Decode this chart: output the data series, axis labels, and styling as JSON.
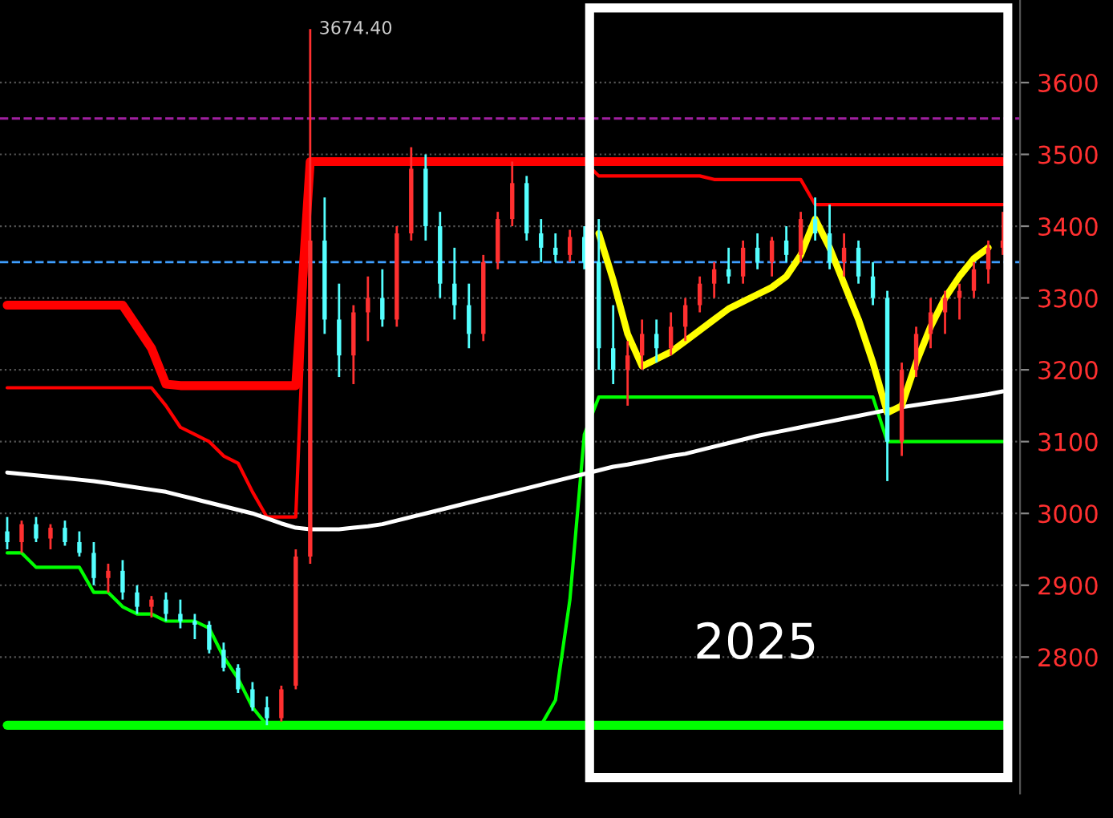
{
  "chart_data": {
    "type": "candlestick",
    "categories": [
      null,
      null,
      null,
      null,
      null,
      null,
      null,
      null,
      null,
      null,
      null,
      null,
      null,
      null,
      null,
      null,
      null,
      null,
      null,
      null,
      null,
      null,
      null,
      null,
      null,
      null,
      null,
      null,
      null,
      null,
      null,
      null,
      null,
      null,
      null,
      null,
      null,
      null,
      null,
      null,
      null,
      null,
      null,
      null,
      null,
      null,
      null,
      null,
      null,
      null,
      null,
      null,
      null,
      null,
      null,
      null,
      null,
      null,
      null,
      null,
      null,
      null,
      null,
      null,
      null,
      null,
      null,
      null,
      null,
      null
    ],
    "ohlc": [
      [
        2975,
        2995,
        2950,
        2960
      ],
      [
        2960,
        2990,
        2945,
        2985
      ],
      [
        2985,
        2995,
        2960,
        2965
      ],
      [
        2965,
        2985,
        2950,
        2980
      ],
      [
        2980,
        2990,
        2955,
        2960
      ],
      [
        2960,
        2975,
        2940,
        2945
      ],
      [
        2945,
        2960,
        2900,
        2910
      ],
      [
        2910,
        2930,
        2890,
        2920
      ],
      [
        2920,
        2935,
        2880,
        2890
      ],
      [
        2890,
        2900,
        2860,
        2870
      ],
      [
        2870,
        2885,
        2855,
        2880
      ],
      [
        2880,
        2890,
        2850,
        2860
      ],
      [
        2860,
        2880,
        2840,
        2850
      ],
      [
        2850,
        2860,
        2825,
        2845
      ],
      [
        2845,
        2850,
        2805,
        2810
      ],
      [
        2810,
        2820,
        2780,
        2785
      ],
      [
        2785,
        2790,
        2750,
        2755
      ],
      [
        2755,
        2765,
        2725,
        2730
      ],
      [
        2730,
        2745,
        2705,
        2715
      ],
      [
        2715,
        2760,
        2710,
        2755
      ],
      [
        2760,
        2950,
        2755,
        2940
      ],
      [
        2940,
        3674.4,
        2930,
        3380
      ],
      [
        3380,
        3440,
        3250,
        3270
      ],
      [
        3270,
        3320,
        3190,
        3220
      ],
      [
        3220,
        3290,
        3180,
        3280
      ],
      [
        3280,
        3330,
        3240,
        3300
      ],
      [
        3300,
        3340,
        3260,
        3270
      ],
      [
        3270,
        3400,
        3260,
        3390
      ],
      [
        3390,
        3510,
        3380,
        3480
      ],
      [
        3480,
        3500,
        3380,
        3400
      ],
      [
        3400,
        3420,
        3300,
        3320
      ],
      [
        3320,
        3370,
        3270,
        3290
      ],
      [
        3290,
        3320,
        3230,
        3250
      ],
      [
        3250,
        3360,
        3240,
        3350
      ],
      [
        3350,
        3420,
        3340,
        3410
      ],
      [
        3410,
        3490,
        3400,
        3460
      ],
      [
        3460,
        3470,
        3380,
        3390
      ],
      [
        3390,
        3410,
        3350,
        3370
      ],
      [
        3370,
        3390,
        3350,
        3360
      ],
      [
        3360,
        3395,
        3350,
        3385
      ],
      [
        3385,
        3400,
        3340,
        3350
      ],
      [
        3350,
        3410,
        3200,
        3230
      ],
      [
        3230,
        3290,
        3180,
        3200
      ],
      [
        3200,
        3240,
        3150,
        3220
      ],
      [
        3220,
        3270,
        3200,
        3250
      ],
      [
        3250,
        3270,
        3210,
        3230
      ],
      [
        3230,
        3280,
        3220,
        3260
      ],
      [
        3260,
        3300,
        3240,
        3290
      ],
      [
        3290,
        3330,
        3280,
        3320
      ],
      [
        3320,
        3350,
        3300,
        3340
      ],
      [
        3340,
        3370,
        3320,
        3330
      ],
      [
        3330,
        3380,
        3320,
        3370
      ],
      [
        3370,
        3390,
        3340,
        3350
      ],
      [
        3350,
        3385,
        3330,
        3380
      ],
      [
        3380,
        3400,
        3350,
        3360
      ],
      [
        3360,
        3420,
        3350,
        3410
      ],
      [
        3410,
        3440,
        3380,
        3390
      ],
      [
        3390,
        3430,
        3340,
        3350
      ],
      [
        3350,
        3390,
        3330,
        3370
      ],
      [
        3370,
        3380,
        3320,
        3330
      ],
      [
        3330,
        3350,
        3290,
        3300
      ],
      [
        3300,
        3310,
        3045,
        3100
      ],
      [
        3100,
        3210,
        3080,
        3200
      ],
      [
        3200,
        3260,
        3190,
        3250
      ],
      [
        3250,
        3300,
        3230,
        3280
      ],
      [
        3280,
        3310,
        3250,
        3300
      ],
      [
        3300,
        3320,
        3270,
        3310
      ],
      [
        3310,
        3350,
        3300,
        3340
      ],
      [
        3340,
        3380,
        3320,
        3370
      ],
      [
        3370,
        3420,
        3360,
        3380
      ]
    ],
    "series": [
      {
        "type": "line",
        "color": "#ff0000",
        "values": [
          3290,
          3290,
          3290,
          3290,
          3290,
          3290,
          3290,
          3290,
          3290,
          3260,
          3230,
          3180,
          3178,
          3178,
          3178,
          3178,
          3178,
          3178,
          3178,
          3178,
          3178,
          3490,
          3490,
          3490,
          3490,
          3490,
          3490,
          3490,
          3490,
          3490,
          3490,
          3490,
          3490,
          3490,
          3490,
          3490,
          3490,
          3490,
          3490,
          3490,
          3490,
          3490,
          3490,
          3490,
          3490,
          3490,
          3490,
          3490,
          3490,
          3490,
          3490,
          3490,
          3490,
          3490,
          3490,
          3490,
          3490,
          3490,
          3490,
          3490,
          3490,
          3490,
          3490,
          3490,
          3490,
          3490,
          3490,
          3490,
          3490,
          3490
        ]
      },
      {
        "type": "line",
        "color": "#ff0000",
        "values": [
          3175,
          3175,
          3175,
          3175,
          3175,
          3175,
          3175,
          3175,
          3175,
          3175,
          3175,
          3150,
          3120,
          3110,
          3100,
          3080,
          3070,
          3030,
          2995,
          2995,
          2995,
          3490,
          3490,
          3490,
          3490,
          3490,
          3490,
          3490,
          3490,
          3490,
          3490,
          3490,
          3490,
          3490,
          3490,
          3490,
          3490,
          3490,
          3490,
          3490,
          3490,
          3470,
          3470,
          3470,
          3470,
          3470,
          3470,
          3470,
          3470,
          3465,
          3465,
          3465,
          3465,
          3465,
          3465,
          3465,
          3430,
          3430,
          3430,
          3430,
          3430,
          3430,
          3430,
          3430,
          3430,
          3430,
          3430,
          3430,
          3430,
          3430
        ]
      },
      {
        "type": "line",
        "color": "#00ff00",
        "values": [
          2945,
          2945,
          2925,
          2925,
          2925,
          2925,
          2890,
          2890,
          2870,
          2860,
          2860,
          2850,
          2850,
          2850,
          2840,
          2800,
          2770,
          2730,
          2705,
          2705,
          2705,
          2705,
          2705,
          2705,
          2705,
          2705,
          2705,
          2705,
          2705,
          2705,
          2705,
          2705,
          2705,
          2705,
          2705,
          2705,
          2705,
          2705,
          2740,
          2880,
          3110,
          3162,
          3162,
          3162,
          3162,
          3162,
          3162,
          3162,
          3162,
          3162,
          3162,
          3162,
          3162,
          3162,
          3162,
          3162,
          3162,
          3162,
          3162,
          3162,
          3162,
          3100,
          3100,
          3100,
          3100,
          3100,
          3100,
          3100,
          3100,
          3100
        ]
      },
      {
        "type": "line",
        "color": "#00ff00",
        "values": [
          2705,
          2705,
          2705,
          2705,
          2705,
          2705,
          2705,
          2705,
          2705,
          2705,
          2705,
          2705,
          2705,
          2705,
          2705,
          2705,
          2705,
          2705,
          2705,
          2705,
          2705,
          2705,
          2705,
          2705,
          2705,
          2705,
          2705,
          2705,
          2705,
          2705,
          2705,
          2705,
          2705,
          2705,
          2705,
          2705,
          2705,
          2705,
          2705,
          2705,
          2705,
          2705,
          2705,
          2705,
          2705,
          2705,
          2705,
          2705,
          2705,
          2705,
          2705,
          2705,
          2705,
          2705,
          2705,
          2705,
          2705,
          2705,
          2705,
          2705,
          2705,
          2705,
          2705,
          2705,
          2705,
          2705,
          2705,
          2705,
          2705,
          2705
        ]
      },
      {
        "type": "line",
        "color": "#ffffff",
        "values": [
          3057,
          3055,
          3053,
          3051,
          3049,
          3047,
          3045,
          3042,
          3039,
          3036,
          3033,
          3030,
          3025,
          3020,
          3015,
          3010,
          3005,
          3000,
          2993,
          2986,
          2980,
          2978,
          2978,
          2978,
          2980,
          2982,
          2985,
          2990,
          2995,
          3000,
          3005,
          3010,
          3015,
          3020,
          3025,
          3030,
          3035,
          3040,
          3045,
          3050,
          3055,
          3060,
          3065,
          3068,
          3072,
          3076,
          3080,
          3083,
          3088,
          3093,
          3098,
          3103,
          3108,
          3112,
          3116,
          3120,
          3124,
          3128,
          3132,
          3136,
          3140,
          3144,
          3148,
          3151,
          3154,
          3157,
          3160,
          3163,
          3166,
          3170
        ]
      },
      {
        "type": "line",
        "color": "#ffff00",
        "values": [
          null,
          null,
          null,
          null,
          null,
          null,
          null,
          null,
          null,
          null,
          null,
          null,
          null,
          null,
          null,
          null,
          null,
          null,
          null,
          null,
          null,
          null,
          null,
          null,
          null,
          null,
          null,
          null,
          null,
          null,
          null,
          null,
          null,
          null,
          null,
          null,
          null,
          null,
          null,
          null,
          null,
          3390,
          3325,
          3250,
          3205,
          3215,
          3225,
          3240,
          3255,
          3270,
          3285,
          3295,
          3305,
          3315,
          3330,
          3360,
          3410,
          3370,
          3320,
          3270,
          3210,
          3140,
          3150,
          3210,
          3260,
          3300,
          3330,
          3355,
          3370,
          null
        ]
      }
    ],
    "ylim": [
      2610,
      3715
    ],
    "yticks": [
      2800,
      2900,
      3000,
      3100,
      3200,
      3300,
      3400,
      3500,
      3600
    ],
    "grid": "y",
    "tick_labels": "y",
    "ref_lines": [
      {
        "axis": "y",
        "value": 3350,
        "color": "#3f9fff",
        "line_style": "dashed"
      },
      {
        "axis": "y",
        "value": 3550,
        "color": "#a020a0",
        "line_style": "dashed"
      }
    ],
    "annotations": [
      "3674.40",
      "2025"
    ]
  }
}
